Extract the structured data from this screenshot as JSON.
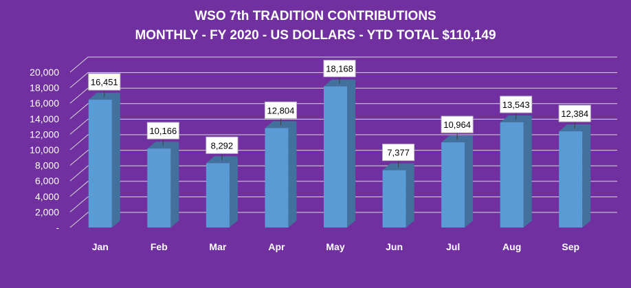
{
  "chart_data": {
    "type": "bar",
    "title_line1": "WSO 7th TRADITION CONTRIBUTIONS",
    "title_line2": "MONTHLY - FY 2020 - US DOLLARS - YTD TOTAL $110,149",
    "categories": [
      "Jan",
      "Feb",
      "Mar",
      "Apr",
      "May",
      "Jun",
      "Jul",
      "Aug",
      "Sep"
    ],
    "values": [
      16451,
      10166,
      8292,
      12804,
      18168,
      7377,
      10964,
      13543,
      12384
    ],
    "data_labels": [
      "16,451",
      "10,166",
      "8,292",
      "12,804",
      "18,168",
      "7,377",
      "10,964",
      "13,543",
      "12,384"
    ],
    "ylim": [
      0,
      20000
    ],
    "ytick_values": [
      0,
      2000,
      4000,
      6000,
      8000,
      10000,
      12000,
      14000,
      16000,
      18000,
      20000
    ],
    "ytick_labels": [
      "-",
      "2,000",
      "4,000",
      "6,000",
      "8,000",
      "10,000",
      "12,000",
      "14,000",
      "16,000",
      "18,000",
      "20,000"
    ],
    "xlabel": "",
    "ylabel": "",
    "grid": true,
    "legend": "none"
  },
  "colors": {
    "background": "#7030a0",
    "bar_front": "#5b9bd5",
    "bar_side": "#41719c",
    "bar_top": "#41719c",
    "gridline": "#d9d9d9",
    "text": "#ffffff",
    "label_box": "#ffffff",
    "label_text": "#000000"
  }
}
